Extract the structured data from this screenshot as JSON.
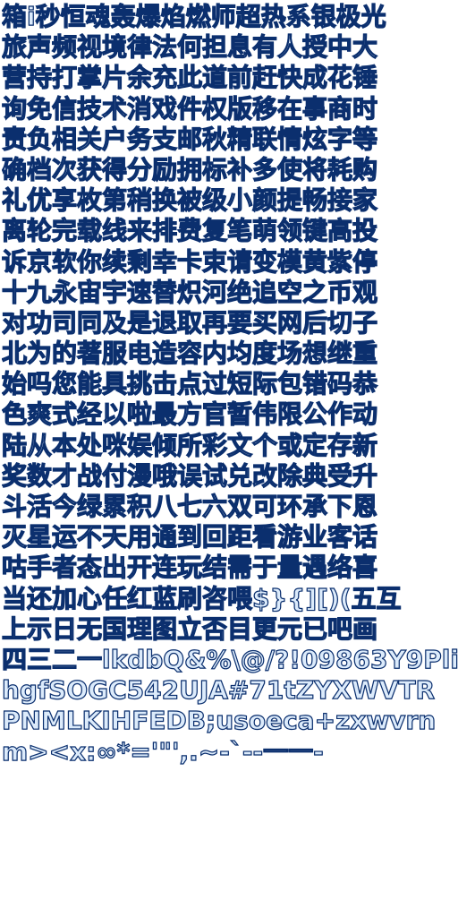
{
  "glyph_sheet": {
    "rows": [
      "箱i秒恒魂轰爆焰燃师超热系银极光",
      "旅声频视境律法何担息有人授中大",
      "营持打掌片余充此道前赶快成花锤",
      "询免信技术消戏件权版移在事商时",
      "责负相关户务支邮秋精联情炫字等",
      "确档次获得分励拥标补多使将耗购",
      "礼优享枚第稍换被级小颜提畅接家",
      "离轮完载线来排费复笔萌领键高投",
      "诉京软你续剩幸卡束请变模黄紫停",
      "十九永宙宇速替炽河绝追空之币观",
      "对功司同及是退取再要买网后切子",
      "北为的著服电造容内均度场想继重",
      "始吗您能具挑击点过短际包错码恭",
      "色爽式经以啦最方官暂伟限公作动",
      "陆从本处咪娱倾所彩文个或定存新",
      "奖数才战付漫哦误试兑改除典受升",
      "斗活今绿累积八七六双可环承下恩",
      "灭星运不天用通到回距看游业客话",
      "咕手者态出开连玩结需于量遇络喜",
      "当还加心任红蓝刷咨喂$}{][)(五互",
      "上示日无国理图立否目更元已吧画",
      "四三二一lkdbQ&%\\@/?!09863Y9Pli",
      "hgfSOGC542UJA#71tZYXWVTR",
      "PNMLKIHFEDB;usoeca+zxwvrn",
      "m><x:∞*='\"',.~-`--一一-"
    ]
  }
}
